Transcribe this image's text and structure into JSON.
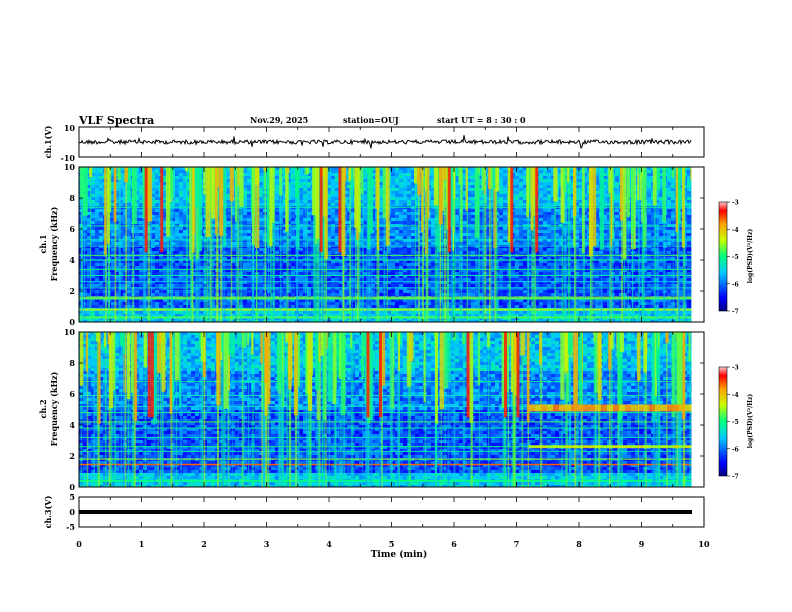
{
  "chart_data": {
    "type": "heatmap",
    "title": "VLF Spectra",
    "date": "Nov.29, 2025",
    "station": "station=OUJ",
    "start_ut": "start UT =  8 : 30 : 0",
    "xlabel": "Time (min)",
    "x_ticks": [
      "0",
      "1",
      "2",
      "3",
      "4",
      "5",
      "6",
      "7",
      "8",
      "9",
      "10"
    ],
    "xlim": [
      0,
      10
    ],
    "data_end_min": 9.8,
    "panels": [
      {
        "name": "ch1-waveform",
        "type": "line",
        "ylabel": "ch.1(V)",
        "ylim": [
          -10,
          10
        ],
        "y_ticks": [
          "10",
          "-10"
        ]
      },
      {
        "name": "ch1-spectrogram",
        "type": "heatmap",
        "ylabel": "Frequency (kHz)",
        "ylabel2": "ch.1",
        "ylim": [
          0,
          10
        ],
        "y_ticks": [
          "0",
          "2",
          "4",
          "6",
          "8",
          "10"
        ],
        "colorbar": {
          "label": "log(PSD)(V²/Hz)",
          "range": [
            -7,
            -3
          ],
          "ticks": [
            "-3",
            "-4",
            "-5",
            "-6",
            "-7"
          ]
        }
      },
      {
        "name": "ch2-spectrogram",
        "type": "heatmap",
        "ylabel": "Frequency (kHz)",
        "ylabel2": "ch.2",
        "ylim": [
          0,
          10
        ],
        "y_ticks": [
          "0",
          "2",
          "4",
          "6",
          "8",
          "10"
        ],
        "colorbar": {
          "label": "log(PSD)(V²/Hz)",
          "range": [
            -7,
            -3
          ],
          "ticks": [
            "-3",
            "-4",
            "-5",
            "-6",
            "-7"
          ]
        }
      },
      {
        "name": "ch3-waveform",
        "type": "line",
        "ylabel": "ch.3(V)",
        "ylim": [
          -5,
          5
        ],
        "y_ticks": [
          "5",
          "0",
          "-5"
        ]
      }
    ]
  }
}
